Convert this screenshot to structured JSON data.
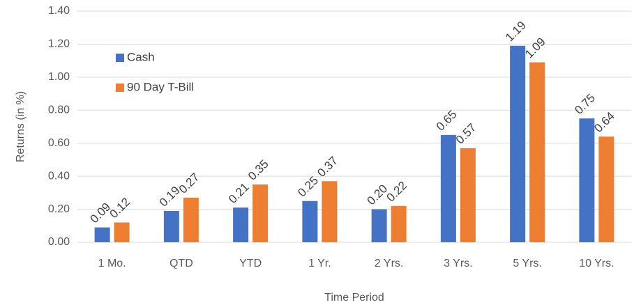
{
  "chart_data": {
    "type": "bar",
    "y_label": "Returns (in %)",
    "x_label": "Time Period",
    "categories": [
      "1 Mo.",
      "QTD",
      "YTD",
      "1 Yr.",
      "2 Yrs.",
      "3 Yrs.",
      "5 Yrs.",
      "10 Yrs."
    ],
    "series": [
      {
        "name": "Cash",
        "color": "#4472c4",
        "values": [
          0.09,
          0.19,
          0.21,
          0.25,
          0.2,
          0.65,
          1.19,
          0.75
        ],
        "value_labels": [
          "0.09",
          "0.19",
          "0.21",
          "0.25",
          "0.20",
          "0.65",
          "1.19",
          "0.75"
        ]
      },
      {
        "name": "90 Day T-Bill",
        "color": "#ed7d31",
        "values": [
          0.12,
          0.27,
          0.35,
          0.37,
          0.22,
          0.57,
          1.09,
          0.64
        ],
        "value_labels": [
          "0.12",
          "0.27",
          "0.35",
          "0.37",
          "0.22",
          "0.57",
          "1.09",
          "0.64"
        ]
      }
    ],
    "ylim": [
      0,
      1.4
    ],
    "yticks": [
      {
        "value": 0,
        "label": "0.00"
      },
      {
        "value": 0.2,
        "label": "0.20"
      },
      {
        "value": 0.4,
        "label": "0.40"
      },
      {
        "value": 0.6,
        "label": "0.60"
      },
      {
        "value": 0.8,
        "label": "0.80"
      },
      {
        "value": 1.0,
        "label": "1.00"
      },
      {
        "value": 1.2,
        "label": "1.20"
      },
      {
        "value": 1.4,
        "label": "1.40"
      }
    ],
    "grid": true,
    "legend": "upper left"
  }
}
